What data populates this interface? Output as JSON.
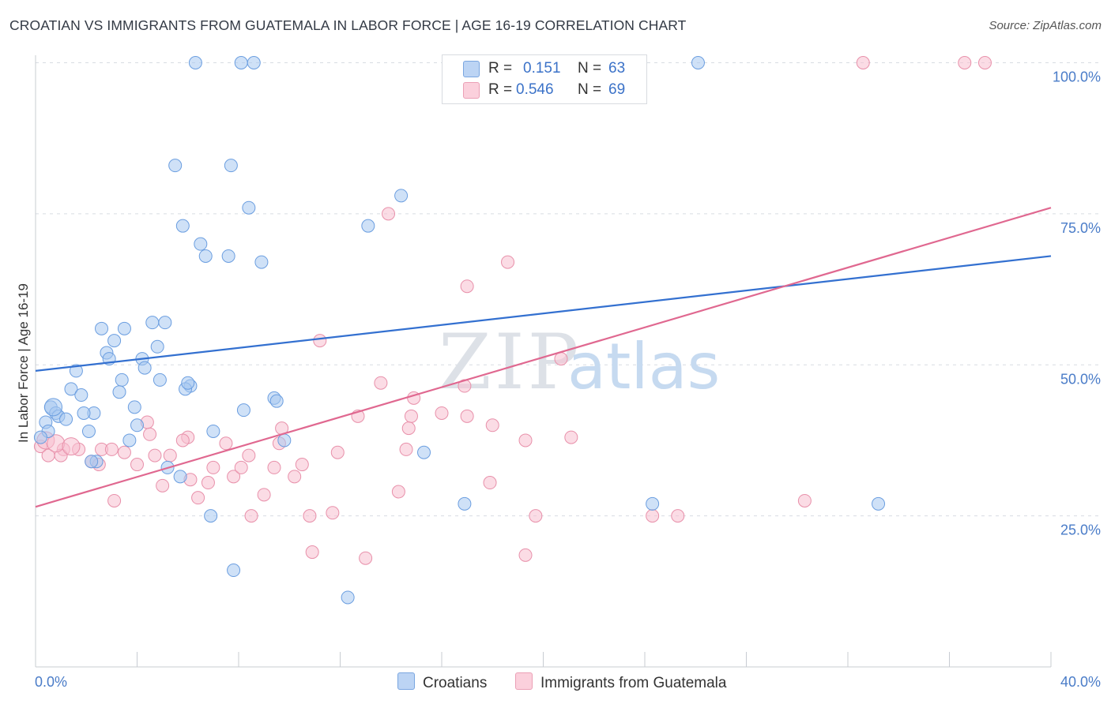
{
  "title": "CROATIAN VS IMMIGRANTS FROM GUATEMALA IN LABOR FORCE | AGE 16-19 CORRELATION CHART",
  "source": "Source: ZipAtlas.com",
  "watermark": {
    "zip": "ZIP",
    "atlas": "atlas"
  },
  "legend": {
    "r_label": "R =",
    "n_label": "N =",
    "croatians": {
      "r": "0.151",
      "n": "63"
    },
    "guatemala": {
      "r": "0.546",
      "n": "69"
    }
  },
  "colors": {
    "blue_fill": "#a8c8f0",
    "blue_stroke": "#6b9ee0",
    "blue_line": "#3370d0",
    "pink_fill": "#f8c0d0",
    "pink_stroke": "#e890aa",
    "pink_line": "#e06890",
    "axis_text": "#4a7cc8",
    "grid": "#d8dce2"
  },
  "chart_data": {
    "type": "scatter",
    "title": "CROATIAN VS IMMIGRANTS FROM GUATEMALA IN LABOR FORCE | AGE 16-19 CORRELATION CHART",
    "xlabel": "",
    "ylabel": "In Labor Force | Age 16-19",
    "xlim": [
      0,
      40
    ],
    "ylim": [
      0,
      102
    ],
    "x_tick_labels": [
      "0.0%",
      "40.0%"
    ],
    "y_ticks": [
      25,
      50,
      75,
      100
    ],
    "y_tick_labels": [
      "25.0%",
      "50.0%",
      "75.0%",
      "100.0%"
    ],
    "series": [
      {
        "name": "Croatians",
        "r": 0.151,
        "n": 63,
        "trend": {
          "x0": 0,
          "y0": 49,
          "x1": 40,
          "y1": 68
        },
        "points": [
          [
            6.3,
            100
          ],
          [
            8.1,
            100
          ],
          [
            8.6,
            100
          ],
          [
            26.1,
            100
          ],
          [
            5.5,
            83
          ],
          [
            7.7,
            83
          ],
          [
            14.4,
            78
          ],
          [
            8.4,
            76
          ],
          [
            13.1,
            73
          ],
          [
            5.8,
            73
          ],
          [
            6.5,
            70
          ],
          [
            6.7,
            68
          ],
          [
            7.6,
            68
          ],
          [
            8.9,
            67
          ],
          [
            2.6,
            56
          ],
          [
            3.5,
            56
          ],
          [
            4.6,
            57
          ],
          [
            5.1,
            57
          ],
          [
            3.1,
            54
          ],
          [
            4.8,
            53
          ],
          [
            2.8,
            52
          ],
          [
            2.9,
            51
          ],
          [
            4.2,
            51
          ],
          [
            4.3,
            49.5
          ],
          [
            1.6,
            49
          ],
          [
            4.9,
            47.5
          ],
          [
            3.4,
            47.5
          ],
          [
            6.1,
            46.5
          ],
          [
            5.9,
            46
          ],
          [
            1.4,
            46
          ],
          [
            1.8,
            45
          ],
          [
            3.3,
            45.5
          ],
          [
            9.4,
            44.5
          ],
          [
            9.5,
            44
          ],
          [
            0.6,
            43
          ],
          [
            0.8,
            42
          ],
          [
            2.3,
            42
          ],
          [
            3.9,
            43
          ],
          [
            1.9,
            42
          ],
          [
            0.9,
            41.5
          ],
          [
            0.4,
            40.5
          ],
          [
            0.5,
            39
          ],
          [
            2.1,
            39
          ],
          [
            4.0,
            40
          ],
          [
            8.2,
            42.5
          ],
          [
            7.0,
            39
          ],
          [
            0.2,
            38
          ],
          [
            3.7,
            37.5
          ],
          [
            9.8,
            37.5
          ],
          [
            15.3,
            35.5
          ],
          [
            2.4,
            34
          ],
          [
            5.2,
            33
          ],
          [
            5.7,
            31.5
          ],
          [
            16.9,
            27
          ],
          [
            24.3,
            27
          ],
          [
            33.2,
            27
          ],
          [
            6.9,
            25
          ],
          [
            7.8,
            16
          ],
          [
            12.3,
            11.5
          ],
          [
            1.2,
            41
          ],
          [
            0.7,
            43
          ],
          [
            2.2,
            34
          ],
          [
            6.0,
            47
          ]
        ]
      },
      {
        "name": "Immigrants from Guatemala",
        "r": 0.546,
        "n": 69,
        "trend": {
          "x0": 0,
          "y0": 26.5,
          "x1": 40,
          "y1": 76
        },
        "points": [
          [
            32.6,
            100
          ],
          [
            36.6,
            100
          ],
          [
            37.4,
            100
          ],
          [
            13.9,
            75
          ],
          [
            18.6,
            67
          ],
          [
            17.0,
            63
          ],
          [
            11.2,
            54
          ],
          [
            20.7,
            51
          ],
          [
            13.6,
            47
          ],
          [
            16.9,
            46.5
          ],
          [
            14.9,
            44.5
          ],
          [
            12.7,
            41.5
          ],
          [
            16.0,
            42
          ],
          [
            14.8,
            41.5
          ],
          [
            17.0,
            41.5
          ],
          [
            4.4,
            40.5
          ],
          [
            14.7,
            39.5
          ],
          [
            18.0,
            40
          ],
          [
            9.7,
            39.5
          ],
          [
            4.5,
            38.5
          ],
          [
            6.0,
            38
          ],
          [
            5.8,
            37.5
          ],
          [
            19.3,
            37.5
          ],
          [
            21.1,
            38
          ],
          [
            9.6,
            37
          ],
          [
            7.5,
            37
          ],
          [
            0.2,
            36.5
          ],
          [
            1.1,
            36
          ],
          [
            1.7,
            36
          ],
          [
            2.6,
            36
          ],
          [
            3.0,
            36
          ],
          [
            11.9,
            35.5
          ],
          [
            14.6,
            36
          ],
          [
            8.4,
            35
          ],
          [
            3.5,
            35.5
          ],
          [
            0.5,
            35
          ],
          [
            1.0,
            35
          ],
          [
            2.2,
            34
          ],
          [
            4.7,
            35
          ],
          [
            5.3,
            35
          ],
          [
            4.0,
            33.5
          ],
          [
            2.5,
            33.5
          ],
          [
            10.5,
            33.5
          ],
          [
            9.4,
            33
          ],
          [
            7.0,
            33
          ],
          [
            7.8,
            31.5
          ],
          [
            10.2,
            31.5
          ],
          [
            6.1,
            31
          ],
          [
            6.8,
            30.5
          ],
          [
            5.0,
            30
          ],
          [
            8.1,
            33
          ],
          [
            14.3,
            29
          ],
          [
            17.9,
            30.5
          ],
          [
            9.0,
            28.5
          ],
          [
            6.4,
            28
          ],
          [
            3.1,
            27.5
          ],
          [
            30.3,
            27.5
          ],
          [
            8.5,
            25
          ],
          [
            10.8,
            25
          ],
          [
            11.7,
            25.5
          ],
          [
            19.7,
            25
          ],
          [
            24.3,
            25
          ],
          [
            25.3,
            25
          ],
          [
            10.9,
            19
          ],
          [
            13.0,
            18
          ],
          [
            19.3,
            18.5
          ],
          [
            0.4,
            37.5
          ],
          [
            0.8,
            37
          ],
          [
            1.4,
            36.5
          ]
        ]
      }
    ]
  }
}
